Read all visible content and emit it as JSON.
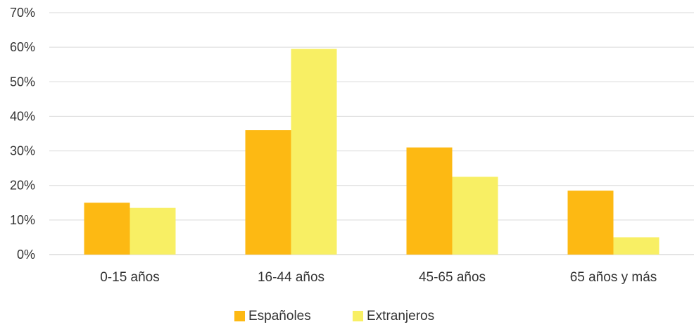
{
  "chart_data": {
    "type": "bar",
    "categories": [
      "0-15 años",
      "16-44 años",
      "45-65 años",
      "65 años y más"
    ],
    "series": [
      {
        "name": "Españoles",
        "values": [
          15,
          36,
          31,
          18.5
        ],
        "color": "#FDB913"
      },
      {
        "name": "Extranjeros",
        "values": [
          13.5,
          59.5,
          22.5,
          5
        ],
        "color": "#F8EF64"
      }
    ],
    "yticks": [
      "0%",
      "10%",
      "20%",
      "30%",
      "40%",
      "50%",
      "60%",
      "70%"
    ],
    "ylim": [
      0,
      70
    ],
    "grid": true,
    "legend_position": "bottom-center"
  }
}
